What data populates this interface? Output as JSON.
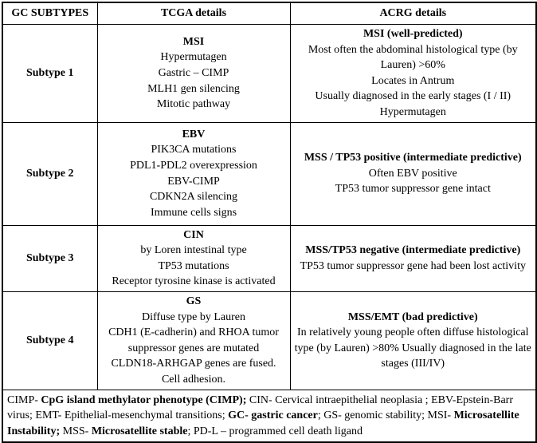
{
  "page": {
    "background_color": "#ffffff",
    "text_color": "#000000",
    "border_color": "#000000"
  },
  "table": {
    "headers": [
      {
        "label": "GC SUBTYPES"
      },
      {
        "label": "TCGA details"
      },
      {
        "label": "ACRG details"
      }
    ],
    "rows": [
      {
        "subtype": "Subtype 1",
        "tcga": {
          "title": "MSI",
          "lines": [
            "Hypermutagen",
            "Gastric – CIMP",
            "MLH1 gen silencing",
            "Mitotic pathway"
          ]
        },
        "acrg": {
          "title": "MSI (well-predicted)",
          "lines": [
            "Most often the abdominal histological type (by Lauren) >60%",
            "Locates in Antrum",
            "Usually diagnosed in the early stages (I / II)",
            "Hypermutagen"
          ]
        }
      },
      {
        "subtype": "Subtype 2",
        "tcga": {
          "title": "EBV",
          "lines": [
            "PIK3CA mutations",
            "PDL1-PDL2 overexpression",
            "EBV-CIMP",
            "CDKN2A silencing",
            "Immune cells signs"
          ]
        },
        "acrg": {
          "title": "MSS / TP53 positive (intermediate predictive)",
          "lines": [
            "Often EBV positive",
            "TP53 tumor suppressor gene intact"
          ]
        }
      },
      {
        "subtype": "Subtype 3",
        "tcga": {
          "title": "CIN",
          "lines": [
            "by Loren intestinal type",
            "TP53 mutations",
            "Receptor tyrosine kinase is activated"
          ]
        },
        "acrg": {
          "title": "MSS/TP53 negative (intermediate predictive)",
          "lines": [
            "TP53 tumor suppressor gene had been lost activity"
          ]
        }
      },
      {
        "subtype": "Subtype 4",
        "tcga": {
          "title": "GS",
          "lines": [
            "Diffuse type by Lauren",
            "CDH1 (E-cadherin) and RHOA tumor suppressor genes are mutated",
            "CLDN18-ARHGAP genes are fused.",
            "Cell adhesion."
          ]
        },
        "acrg": {
          "title": "MSS/EMT (bad predictive)",
          "lines": [
            "In relatively young people often diffuse histological type (by Lauren) >80% Usually diagnosed in the late stages (III/IV)"
          ]
        }
      }
    ],
    "footnote_segments": [
      {
        "text": "CIMP- ",
        "bold": false
      },
      {
        "text": "CpG island methylator phenotype (CIMP);",
        "bold": true
      },
      {
        "text": " CIN- Cervical intraepithelial neoplasia ; EBV-Epstein-Barr virus; EMT- Epithelial-mesenchymal transitions; ",
        "bold": false
      },
      {
        "text": "GC- gastric cancer",
        "bold": true
      },
      {
        "text": "; GS- genomic stability; MSI- ",
        "bold": false
      },
      {
        "text": "Microsatellite Instability;",
        "bold": true
      },
      {
        "text": " MSS- ",
        "bold": false
      },
      {
        "text": "Microsatellite stable",
        "bold": true
      },
      {
        "text": "; PD-L – programmed cell death ligand",
        "bold": false
      }
    ]
  }
}
